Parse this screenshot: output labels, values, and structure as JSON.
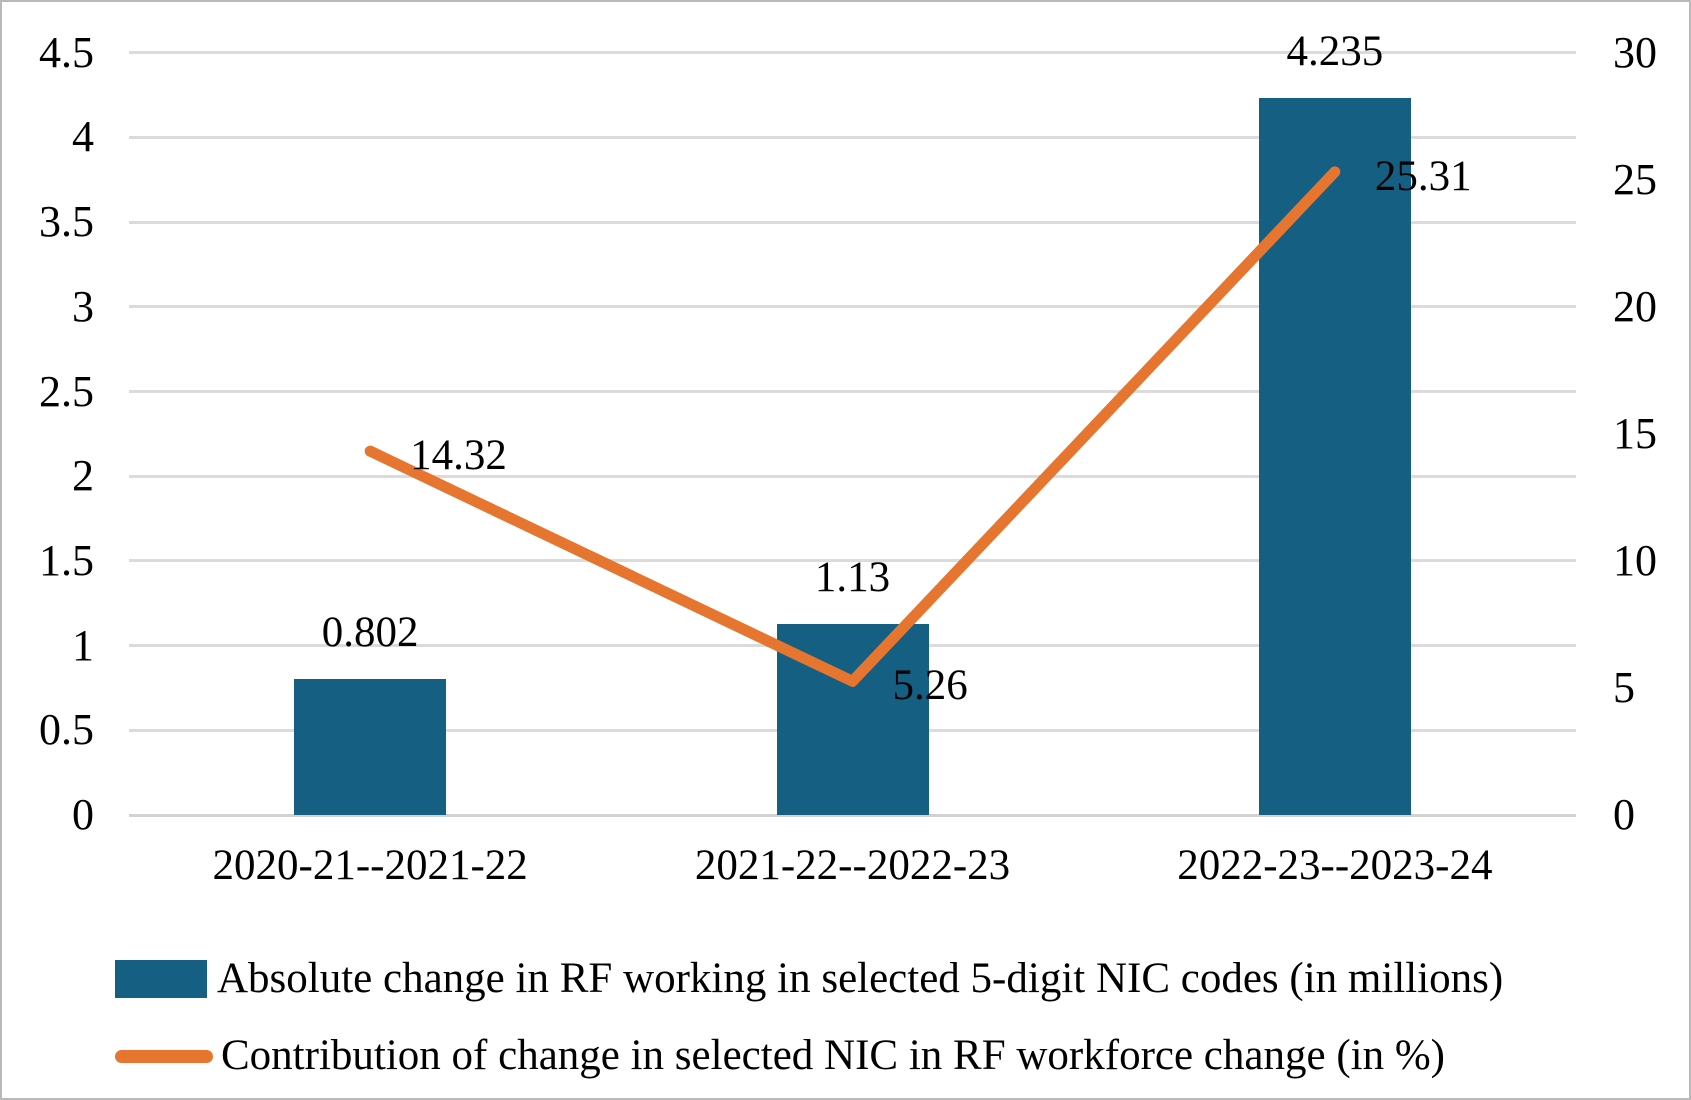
{
  "chart_data": {
    "type": "combo-bar-line",
    "title": "",
    "categories": [
      "2020-21--2021-22",
      "2021-22--2022-23",
      "2022-23--2023-24"
    ],
    "series": [
      {
        "name": "Absolute change in RF working in selected 5-digit NIC codes (in millions)",
        "type": "bar",
        "axis": "left",
        "values": [
          0.802,
          1.13,
          4.235
        ],
        "labels": [
          "0.802",
          "1.13",
          "4.235"
        ],
        "color": "#155F82"
      },
      {
        "name": "Contribution of change in selected NIC in RF workforce change (in %)",
        "type": "line",
        "axis": "right",
        "values": [
          14.32,
          5.26,
          25.31
        ],
        "labels": [
          "14.32",
          "5.26",
          "25.31"
        ],
        "color": "#E6752F"
      }
    ],
    "left_axis": {
      "ticks": [
        "0",
        "0.5",
        "1",
        "1.5",
        "2",
        "2.5",
        "3",
        "3.5",
        "4",
        "4.5"
      ],
      "min": 0,
      "max": 4.5
    },
    "right_axis": {
      "ticks": [
        "0",
        "5",
        "10",
        "15",
        "20",
        "25",
        "30"
      ],
      "min": 0,
      "max": 30
    },
    "grid": "horizontal",
    "gridline_color": "#DBDBDB",
    "axis_line_color": "#D2D2D2",
    "text_color": "#000000",
    "background_color": "#FFFFFF",
    "legend_position": "bottom-left"
  }
}
